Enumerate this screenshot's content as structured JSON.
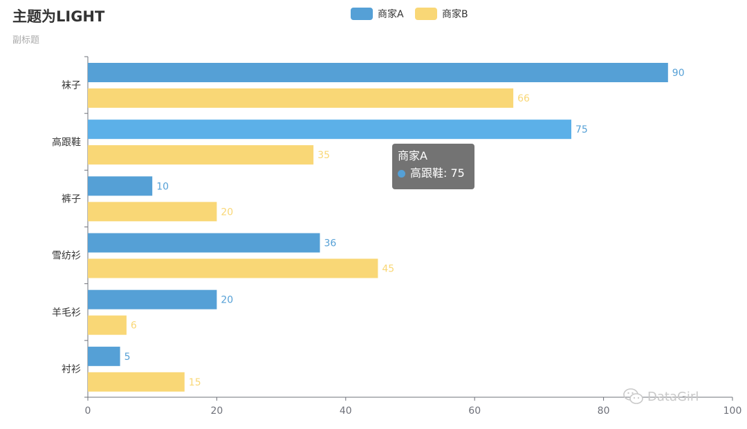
{
  "chart_data": {
    "type": "bar",
    "orientation": "horizontal",
    "title": "主题为LIGHT",
    "subtitle": "副标题",
    "categories": [
      "衬衫",
      "羊毛衫",
      "雪纺衫",
      "裤子",
      "高跟鞋",
      "袜子"
    ],
    "series": [
      {
        "name": "商家A",
        "values": [
          5,
          20,
          36,
          10,
          75,
          90
        ],
        "color": "#5470c6"
      },
      {
        "name": "商家B",
        "values": [
          15,
          6,
          45,
          20,
          35,
          66
        ],
        "color": "#fac858"
      }
    ],
    "xlim": [
      0,
      100
    ],
    "xticks": [
      0,
      20,
      40,
      60,
      80,
      100
    ],
    "grid": false,
    "legend": "top-center",
    "data_labels": true,
    "highlighted": {
      "series": "商家A",
      "category": "高跟鞋",
      "color": "#5cb0e8"
    }
  },
  "colors": {
    "series_a": "#55a0d6",
    "series_a_hover": "#5cb0e8",
    "series_b": "#f9d776",
    "axis": "#6e7079",
    "tooltip_bg": "#505050"
  },
  "tooltip": {
    "series": "商家A",
    "category": "高跟鞋",
    "value": "75",
    "row_text": "高跟鞋: 75"
  },
  "watermark": {
    "icon": "wechat-icon",
    "text": "DataGirl"
  }
}
